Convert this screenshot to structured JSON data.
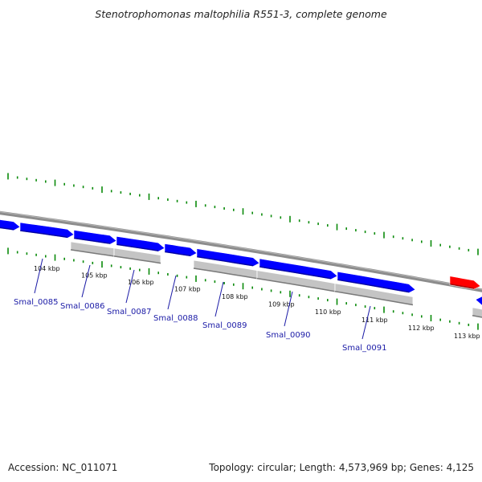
{
  "title": "Stenotrophomonas maltophilia R551-3, complete genome",
  "footer": {
    "accession_label": "Accession:",
    "accession": "NC_011071",
    "topology_label": "Topology:",
    "topology": "circular",
    "length_label": "Length:",
    "length": "4,573,969 bp",
    "genes_label": "Genes:",
    "genes": "4,125"
  },
  "colors": {
    "forward_gene": "#0000ff",
    "reverse_gene_red": "#ff0000",
    "cds_bar": "#c4c4c4",
    "backbone": "#8c8c8c",
    "tick": "#0a8a0a",
    "gene_label": "#1a1aa6"
  },
  "scale_ticks": [
    {
      "position_kbp": 104,
      "label": "104 kbp"
    },
    {
      "position_kbp": 105,
      "label": "105 kbp"
    },
    {
      "position_kbp": 106,
      "label": "106 kbp"
    },
    {
      "position_kbp": 107,
      "label": "107 kbp"
    },
    {
      "position_kbp": 108,
      "label": "108 kbp"
    },
    {
      "position_kbp": 109,
      "label": "109 kbp"
    },
    {
      "position_kbp": 110,
      "label": "110 kbp"
    },
    {
      "position_kbp": 111,
      "label": "111 kbp"
    },
    {
      "position_kbp": 112,
      "label": "112 kbp"
    },
    {
      "position_kbp": 113,
      "label": "113 kbp"
    }
  ],
  "genes": [
    {
      "locus_tag": "Smal_0085",
      "position_kbp": 104.0
    },
    {
      "locus_tag": "Smal_0086",
      "position_kbp": 105.1
    },
    {
      "locus_tag": "Smal_0087",
      "position_kbp": 106.0
    },
    {
      "locus_tag": "Smal_0088",
      "position_kbp": 107.0
    },
    {
      "locus_tag": "Smal_0089",
      "position_kbp": 108.0
    },
    {
      "locus_tag": "Smal_0090",
      "position_kbp": 109.5
    },
    {
      "locus_tag": "Smal_0091",
      "position_kbp": 111.2
    }
  ]
}
